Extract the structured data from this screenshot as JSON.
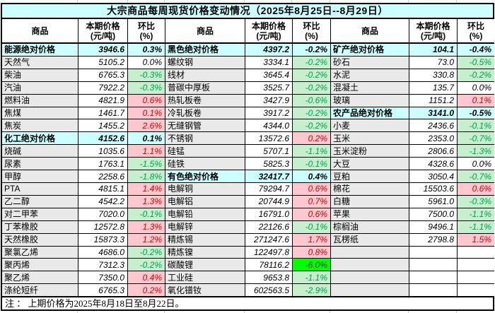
{
  "title": "大宗商品每周现货价格变动情况（2025年8月25日--8月29日）",
  "header": {
    "commodity": "商品",
    "price": "本期价格",
    "price_unit": "(元/吨)",
    "pct": "环比",
    "pct_unit": "(%)"
  },
  "note": "注 ： 上期价格为2025年8月18日至8月22日。",
  "colors": {
    "title_bg": "#CCFFFF",
    "category_bg": "#CCFFFF",
    "name_bg": "#E9E9E9",
    "up_bg": "#FFC7CE",
    "up_text": "#D60000",
    "down_bg": "#C6EFCE",
    "down_text": "#00A050",
    "bigdown_bg": "#00FF00",
    "bigdown_text": "#3A3A3A",
    "border": "#000000"
  },
  "groups": [
    {
      "rows": [
        {
          "name": "能源绝对价格",
          "price": "3946.6",
          "pct": "0.3%",
          "style": "category"
        },
        {
          "name": "天然气",
          "price": "5105.2",
          "pct": "0.0%",
          "style": "flat"
        },
        {
          "name": "柴油",
          "price": "6765.3",
          "pct": "-0.3%",
          "style": "down"
        },
        {
          "name": "汽油",
          "price": "7922.2",
          "pct": "-0.3%",
          "style": "down"
        },
        {
          "name": "燃料油",
          "price": "4821.9",
          "pct": "0.6%",
          "style": "up"
        },
        {
          "name": "焦煤",
          "price": "1461.7",
          "pct": "0.1%",
          "style": "up"
        },
        {
          "name": "焦炭",
          "price": "1455.2",
          "pct": "2.6%",
          "style": "up"
        },
        {
          "name": "化工绝对价格",
          "price": "4152.6",
          "pct": "0.1%",
          "style": "category"
        },
        {
          "name": "烧碱",
          "price": "1035.6",
          "pct": "1.1%",
          "style": "up"
        },
        {
          "name": "尿素",
          "price": "1763.1",
          "pct": "-1.5%",
          "style": "down"
        },
        {
          "name": "甲醇",
          "price": "2258.6",
          "pct": "-1.8%",
          "style": "down"
        },
        {
          "name": "PTA",
          "price": "4815.1",
          "pct": "1.4%",
          "style": "up"
        },
        {
          "name": "乙二醇",
          "price": "4542.2",
          "pct": "1.3%",
          "style": "up"
        },
        {
          "name": "对二甲苯",
          "price": "7020.0",
          "pct": "-0.1%",
          "style": "down"
        },
        {
          "name": "丁苯橡胶",
          "price": "12572.8",
          "pct": "1.3%",
          "style": "up"
        },
        {
          "name": "天然橡胶",
          "price": "15873.3",
          "pct": "1.2%",
          "style": "up"
        },
        {
          "name": "聚氯乙烯",
          "price": "4686.0",
          "pct": "-0.2%",
          "style": "down"
        },
        {
          "name": "聚丙烯",
          "price": "7312.3",
          "pct": "-0.2%",
          "style": "down"
        },
        {
          "name": "聚乙烯",
          "price": "7350.0",
          "pct": "0.4%",
          "style": "up"
        },
        {
          "name": "涤纶短纤",
          "price": "6765.3",
          "pct": "0.2%",
          "style": "up"
        }
      ]
    },
    {
      "rows": [
        {
          "name": "黑色绝对价格",
          "price": "4397.2",
          "pct": "-0.2%",
          "style": "category"
        },
        {
          "name": "螺纹钢",
          "price": "3334.1",
          "pct": "-0.2%",
          "style": "down"
        },
        {
          "name": "线材",
          "price": "3645.4",
          "pct": "-0.2%",
          "style": "down"
        },
        {
          "name": "普碳中厚板",
          "price": "3525.7",
          "pct": "-0.2%",
          "style": "down"
        },
        {
          "name": "热轧板卷",
          "price": "3427.9",
          "pct": "-0.6%",
          "style": "down"
        },
        {
          "name": "冷轧板卷",
          "price": "3917.2",
          "pct": "-0.2%",
          "style": "down"
        },
        {
          "name": "无缝钢管",
          "price": "4344.0",
          "pct": "-0.2%",
          "style": "down"
        },
        {
          "name": "不锈钢",
          "price": "13572.6",
          "pct": "0.2%",
          "style": "up"
        },
        {
          "name": "硅锰",
          "price": "5707.1",
          "pct": "-1.1%",
          "style": "down"
        },
        {
          "name": "硅铁",
          "price": "5825.3",
          "pct": "-0.1%",
          "style": "down"
        },
        {
          "name": "有色绝对价格",
          "price": "32417.7",
          "pct": "0.4%",
          "style": "category"
        },
        {
          "name": "电解铜",
          "price": "79294.7",
          "pct": "0.6%",
          "style": "up"
        },
        {
          "name": "电解铝",
          "price": "20744.9",
          "pct": "0.7%",
          "style": "up"
        },
        {
          "name": "电解铅",
          "price": "16791.0",
          "pct": "0.6%",
          "style": "up"
        },
        {
          "name": "电解锌",
          "price": "22126.6",
          "pct": "-0.1%",
          "style": "down"
        },
        {
          "name": "精炼锡",
          "price": "271247.6",
          "pct": "1.7%",
          "style": "up"
        },
        {
          "name": "精炼镍",
          "price": "122497.8",
          "pct": "0.8%",
          "style": "up"
        },
        {
          "name": "碳酸锂",
          "price": "78116.2",
          "pct": "-6.0%",
          "style": "bigdown"
        },
        {
          "name": "工业硅",
          "price": "9653.8",
          "pct": "-1.1%",
          "style": "down"
        },
        {
          "name": "氧化镨钕",
          "price": "602563.5",
          "pct": "-2.9%",
          "style": "down"
        }
      ]
    },
    {
      "rows": [
        {
          "name": "矿产绝对价格",
          "price": "104.1",
          "pct": "-0.4%",
          "style": "category"
        },
        {
          "name": "砂石",
          "price": "73.0",
          "pct": "-0.5%",
          "style": "down"
        },
        {
          "name": "水泥",
          "price": "330.8",
          "pct": "-0.2%",
          "style": "down"
        },
        {
          "name": "混凝土",
          "price": "135.7",
          "pct": "0.0%",
          "style": "flat"
        },
        {
          "name": "玻璃",
          "price": "1151.2",
          "pct": "0.1%",
          "style": "up"
        },
        {
          "name": "农产品绝对价格",
          "price": "3141.0",
          "pct": "-0.5%",
          "style": "category"
        },
        {
          "name": "小麦",
          "price": "2436.6",
          "pct": "-0.1%",
          "style": "down"
        },
        {
          "name": "玉米",
          "price": "2353.0",
          "pct": "-0.7%",
          "style": "down"
        },
        {
          "name": "玉米淀粉",
          "price": "2806.6",
          "pct": "-1.3%",
          "style": "down"
        },
        {
          "name": "大豆",
          "price": "4328.6",
          "pct": "0.0%",
          "style": "flat"
        },
        {
          "name": "豆粕",
          "price": "3050.4",
          "pct": "-0.7%",
          "style": "down"
        },
        {
          "name": "棉花",
          "price": "15503.6",
          "pct": "0.6%",
          "style": "up"
        },
        {
          "name": "白糖",
          "price": "5961.0",
          "pct": "-0.3%",
          "style": "down"
        },
        {
          "name": "苹果",
          "price": "7500.0",
          "pct": "-1.1%",
          "style": "down"
        },
        {
          "name": "棕榈油",
          "price": "9496.1",
          "pct": "-1.1%",
          "style": "down"
        },
        {
          "name": "瓦楞纸",
          "price": "2798.8",
          "pct": "1.5%",
          "style": "up"
        },
        {
          "name": "",
          "price": "",
          "pct": "",
          "style": "empty"
        },
        {
          "name": "",
          "price": "",
          "pct": "",
          "style": "empty"
        },
        {
          "name": "",
          "price": "",
          "pct": "",
          "style": "empty"
        },
        {
          "name": "",
          "price": "",
          "pct": "",
          "style": "empty"
        }
      ]
    }
  ]
}
